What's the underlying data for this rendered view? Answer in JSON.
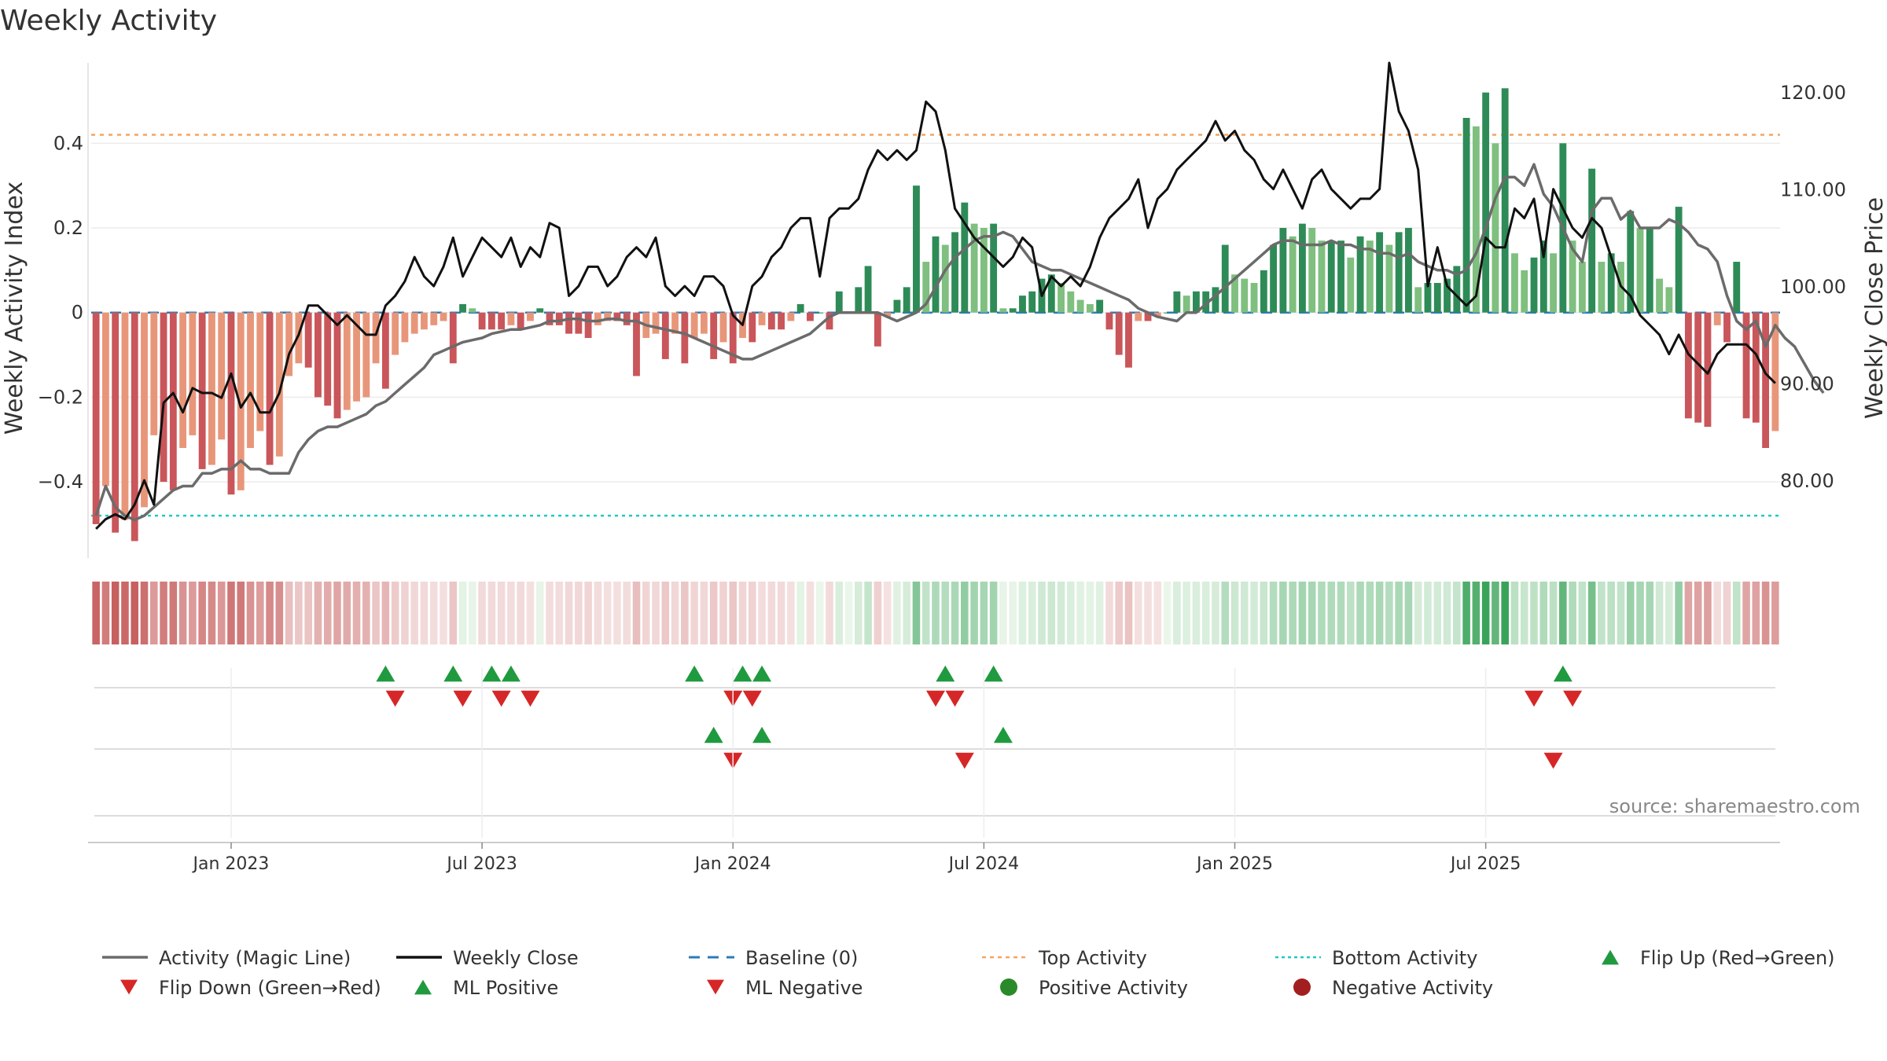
{
  "chart_data": {
    "type": "bar+line",
    "title": "Weekly Activity",
    "ylabel_left": "Weekly Activity Index",
    "ylabel_right": "Weekly Close Price",
    "ylim_left": [
      -0.58,
      0.59
    ],
    "ylim_right": [
      72,
      123
    ],
    "left_ticks": [
      {
        "v": 0.4,
        "label": "0.4"
      },
      {
        "v": 0.2,
        "label": "0.2"
      },
      {
        "v": 0,
        "label": "0"
      },
      {
        "v": -0.2,
        "label": "−0.2"
      },
      {
        "v": -0.4,
        "label": "−0.4"
      }
    ],
    "right_ticks": [
      {
        "v": 120,
        "label": "120.00"
      },
      {
        "v": 110,
        "label": "110.00"
      },
      {
        "v": 100,
        "label": "100.00"
      },
      {
        "v": 90,
        "label": "90.00"
      },
      {
        "v": 80,
        "label": "80.00"
      }
    ],
    "top_activity": 0.42,
    "bottom_activity": -0.48,
    "date_ticks": [
      {
        "week": 14.5,
        "label": "Jan 2023"
      },
      {
        "week": 40.5,
        "label": "Jul 2023"
      },
      {
        "week": 66.5,
        "label": "Jan 2024"
      },
      {
        "week": 92.5,
        "label": "Jul 2024"
      },
      {
        "week": 118.5,
        "label": "Jan 2025"
      },
      {
        "week": 144.5,
        "label": "Jul 2025"
      }
    ],
    "activity": [
      -0.5,
      -0.41,
      -0.52,
      -0.49,
      -0.54,
      -0.46,
      -0.29,
      -0.4,
      -0.42,
      -0.32,
      -0.29,
      -0.37,
      -0.36,
      -0.3,
      -0.43,
      -0.42,
      -0.32,
      -0.28,
      -0.36,
      -0.34,
      -0.15,
      -0.12,
      -0.13,
      -0.2,
      -0.22,
      -0.25,
      -0.23,
      -0.21,
      -0.2,
      -0.12,
      -0.18,
      -0.1,
      -0.07,
      -0.05,
      -0.04,
      -0.03,
      -0.02,
      -0.12,
      0.02,
      0.01,
      -0.04,
      -0.04,
      -0.04,
      -0.03,
      -0.04,
      -0.02,
      0.01,
      -0.03,
      -0.03,
      -0.05,
      -0.05,
      -0.06,
      -0.03,
      -0.02,
      -0.02,
      -0.03,
      -0.15,
      -0.06,
      -0.05,
      -0.11,
      -0.05,
      -0.12,
      -0.06,
      -0.05,
      -0.11,
      -0.07,
      -0.12,
      -0.06,
      -0.07,
      -0.03,
      -0.04,
      -0.04,
      -0.02,
      0.02,
      -0.02,
      0.0,
      -0.04,
      0.05,
      0.0,
      0.06,
      0.11,
      -0.08,
      -0.01,
      0.03,
      0.06,
      0.3,
      0.12,
      0.18,
      0.16,
      0.19,
      0.26,
      0.21,
      0.2,
      0.21,
      0.01,
      0.01,
      0.04,
      0.05,
      0.08,
      0.09,
      0.07,
      0.05,
      0.03,
      0.02,
      0.03,
      -0.04,
      -0.1,
      -0.13,
      -0.02,
      -0.02,
      -0.01,
      0.0,
      0.05,
      0.04,
      0.05,
      0.05,
      0.06,
      0.16,
      0.09,
      0.08,
      0.07,
      0.1,
      0.16,
      0.2,
      0.18,
      0.21,
      0.2,
      0.17,
      0.17,
      0.17,
      0.13,
      0.18,
      0.17,
      0.19,
      0.16,
      0.19,
      0.2,
      0.06,
      0.07,
      0.07,
      0.08,
      0.11,
      0.46,
      0.44,
      0.52,
      0.4,
      0.53,
      0.14,
      0.1,
      0.13,
      0.17,
      0.14,
      0.4,
      0.17,
      0.12,
      0.34,
      0.12,
      0.14,
      0.12,
      0.24,
      0.2,
      0.2,
      0.08,
      0.06,
      0.25,
      -0.25,
      -0.26,
      -0.27,
      -0.03,
      -0.07,
      0.12,
      -0.25,
      -0.26,
      -0.32,
      -0.28
    ],
    "magic_line": [
      -0.48,
      -0.41,
      -0.46,
      -0.48,
      -0.49,
      -0.48,
      -0.46,
      -0.44,
      -0.42,
      -0.41,
      -0.41,
      -0.38,
      -0.38,
      -0.37,
      -0.37,
      -0.35,
      -0.37,
      -0.37,
      -0.38,
      -0.38,
      -0.38,
      -0.33,
      -0.3,
      -0.28,
      -0.27,
      -0.27,
      -0.26,
      -0.25,
      -0.24,
      -0.22,
      -0.21,
      -0.19,
      -0.17,
      -0.15,
      -0.13,
      -0.1,
      -0.09,
      -0.08,
      -0.07,
      -0.065,
      -0.06,
      -0.05,
      -0.045,
      -0.04,
      -0.04,
      -0.035,
      -0.03,
      -0.02,
      -0.02,
      -0.015,
      -0.015,
      -0.02,
      -0.02,
      -0.015,
      -0.015,
      -0.02,
      -0.02,
      -0.03,
      -0.035,
      -0.04,
      -0.045,
      -0.05,
      -0.06,
      -0.07,
      -0.08,
      -0.09,
      -0.1,
      -0.11,
      -0.11,
      -0.1,
      -0.09,
      -0.08,
      -0.07,
      -0.06,
      -0.05,
      -0.03,
      -0.01,
      0.0,
      0.0,
      0.0,
      0.0,
      0.0,
      -0.01,
      -0.02,
      -0.01,
      0.0,
      0.02,
      0.06,
      0.1,
      0.13,
      0.15,
      0.17,
      0.18,
      0.18,
      0.19,
      0.18,
      0.15,
      0.12,
      0.11,
      0.1,
      0.1,
      0.09,
      0.08,
      0.07,
      0.06,
      0.05,
      0.04,
      0.03,
      0.01,
      0.0,
      -0.01,
      -0.015,
      -0.02,
      0.0,
      0.0,
      0.02,
      0.04,
      0.06,
      0.08,
      0.1,
      0.12,
      0.14,
      0.16,
      0.17,
      0.17,
      0.16,
      0.16,
      0.16,
      0.17,
      0.16,
      0.16,
      0.15,
      0.15,
      0.14,
      0.14,
      0.13,
      0.14,
      0.12,
      0.11,
      0.1,
      0.1,
      0.09,
      0.1,
      0.14,
      0.2,
      0.27,
      0.32,
      0.32,
      0.3,
      0.35,
      0.28,
      0.25,
      0.2,
      0.15,
      0.12,
      0.24,
      0.27,
      0.27,
      0.22,
      0.24,
      0.2,
      0.2,
      0.2,
      0.22,
      0.21,
      0.19,
      0.16,
      0.15,
      0.12,
      0.04,
      -0.02,
      -0.04,
      -0.02,
      -0.08,
      -0.03,
      -0.06,
      -0.08,
      -0.12,
      -0.16,
      -0.19
    ],
    "weekly_close": [
      75.0,
      76.0,
      76.5,
      76.0,
      77.5,
      80.0,
      77.5,
      88.0,
      89.0,
      87.0,
      89.5,
      89.0,
      89.0,
      88.5,
      91.0,
      87.5,
      89.0,
      87.0,
      87.0,
      89.0,
      93.0,
      95.0,
      98.0,
      98.0,
      97.0,
      96.0,
      97.0,
      96.0,
      95.0,
      95.0,
      98.0,
      99.0,
      100.5,
      103.0,
      101.0,
      100.0,
      102.0,
      105.0,
      101.0,
      103.0,
      105.0,
      104.0,
      103.0,
      105.0,
      102.0,
      104.0,
      103.0,
      106.5,
      106.0,
      99.0,
      100.0,
      102.0,
      102.0,
      100.0,
      101.0,
      103.0,
      104.0,
      103.0,
      105.0,
      100.0,
      99.0,
      100.0,
      99.0,
      101.0,
      101.0,
      100.0,
      97.0,
      96.0,
      100.0,
      101.0,
      103.0,
      104.0,
      106.0,
      107.0,
      107.0,
      101.0,
      107.0,
      108.0,
      108.0,
      109.0,
      112.0,
      114.0,
      113.0,
      114.0,
      113.0,
      114.0,
      119.0,
      118.0,
      114.0,
      108.0,
      106.5,
      105.0,
      104.0,
      103.0,
      102.0,
      103.0,
      105.0,
      104.0,
      99.0,
      101.0,
      100.0,
      101.0,
      100.0,
      102.0,
      105.0,
      107.0,
      108.0,
      109.0,
      111.0,
      106.0,
      109.0,
      110.0,
      112.0,
      113.0,
      114.0,
      115.0,
      117.0,
      115.0,
      116.0,
      114.0,
      113.0,
      111.0,
      110.0,
      112.0,
      110.0,
      108.0,
      111.0,
      112.0,
      110.0,
      109.0,
      108.0,
      109.0,
      109.0,
      110.0,
      123.0,
      118.0,
      116.0,
      112.0,
      100.0,
      104.0,
      100.0,
      99.0,
      98.0,
      99.0,
      105.0,
      104.0,
      104.0,
      108.0,
      107.0,
      109.0,
      103.0,
      110.0,
      108.0,
      106.0,
      105.0,
      107.0,
      106.0,
      103.0,
      100.0,
      99.0,
      97.0,
      96.0,
      95.0,
      93.0,
      95.0,
      93.0,
      92.0,
      91.0,
      93.0,
      94.0,
      94.0,
      94.0,
      93.0,
      91.0,
      90.0
    ],
    "flip_up_weeks": [
      30,
      37,
      41,
      43,
      62,
      67,
      69,
      88,
      93,
      152
    ],
    "flip_down_weeks": [
      31,
      38,
      42,
      45,
      66,
      68,
      87,
      89,
      149,
      153
    ],
    "ml_positive_weeks": [
      64,
      69,
      94
    ],
    "ml_negative_weeks": [
      66,
      90,
      151
    ],
    "source": "source: sharemaestro.com",
    "legend": [
      {
        "key": "magic",
        "label": "Activity (Magic Line)"
      },
      {
        "key": "close",
        "label": "Weekly Close"
      },
      {
        "key": "baseline",
        "label": "Baseline (0)"
      },
      {
        "key": "top",
        "label": "Top Activity"
      },
      {
        "key": "bottom",
        "label": "Bottom Activity"
      },
      {
        "key": "flipup",
        "label": "Flip Up (Red→Green)"
      },
      {
        "key": "flipdown",
        "label": "Flip Down (Green→Red)"
      },
      {
        "key": "mlpos",
        "label": "ML Positive"
      },
      {
        "key": "mlneg",
        "label": "ML Negative"
      },
      {
        "key": "posact",
        "label": "Positive Activity"
      },
      {
        "key": "negact",
        "label": "Negative Activity"
      }
    ],
    "colors": {
      "pos_dark": "#2e8b57",
      "pos_light": "#7fbf7f",
      "neg_dark": "#c9565a",
      "neg_light": "#e8967a",
      "magic": "#6b6b6b",
      "close": "#111111",
      "baseline": "#2b7bb9",
      "top": "#f4a460",
      "bottom": "#20c8c8",
      "marker_up": "#1f9a3f",
      "marker_down": "#d62728",
      "pos_dot": "#2a8a2a",
      "neg_dot": "#a31f1f"
    }
  }
}
